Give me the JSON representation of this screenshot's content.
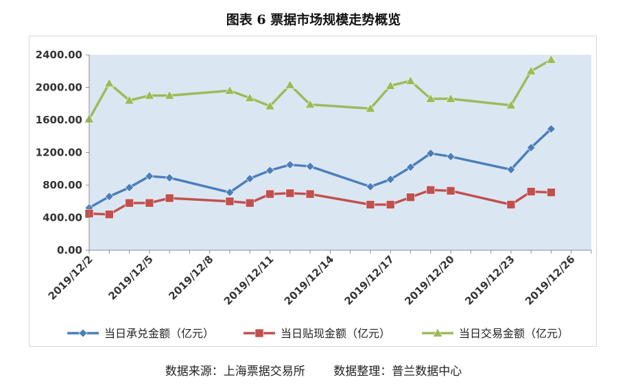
{
  "title": "图表 6  票据市场规模走势概览",
  "source": {
    "left": "数据来源：上海票据交易所",
    "right": "数据整理：普兰数据中心"
  },
  "chart_data": {
    "type": "line",
    "title": "",
    "xlabel": "",
    "ylabel": "",
    "ylim": [
      0,
      2400
    ],
    "yticks": [
      "0.00",
      "400.00",
      "800.00",
      "1200.00",
      "1600.00",
      "2000.00",
      "2400.00"
    ],
    "xrange": [
      "2019-12-02",
      "2019-12-27"
    ],
    "xtick_labels": [
      "2019/12/2",
      "2019/12/5",
      "2019/12/8",
      "2019/12/11",
      "2019/12/14",
      "2019/12/17",
      "2019/12/20",
      "2019/12/23",
      "2019/12/26"
    ],
    "xtick_dates": [
      "2019-12-02",
      "2019-12-05",
      "2019-12-08",
      "2019-12-11",
      "2019-12-14",
      "2019-12-17",
      "2019-12-20",
      "2019-12-23",
      "2019-12-26"
    ],
    "x": [
      "2019-12-02",
      "2019-12-03",
      "2019-12-04",
      "2019-12-05",
      "2019-12-06",
      "2019-12-09",
      "2019-12-10",
      "2019-12-11",
      "2019-12-12",
      "2019-12-13",
      "2019-12-16",
      "2019-12-17",
      "2019-12-18",
      "2019-12-19",
      "2019-12-20",
      "2019-12-23",
      "2019-12-24",
      "2019-12-25"
    ],
    "grid": false,
    "legend_position": "bottom",
    "plot_background": "#dbe6f3",
    "series": [
      {
        "name": "当日承兑金额（亿元）",
        "color": "#4a7ebb",
        "marker": "diamond",
        "values": [
          520,
          660,
          770,
          910,
          890,
          710,
          880,
          980,
          1050,
          1030,
          780,
          870,
          1020,
          1190,
          1150,
          990,
          1260,
          1490
        ]
      },
      {
        "name": "当日贴现金额（亿元）",
        "color": "#c0504d",
        "marker": "square",
        "values": [
          450,
          440,
          580,
          580,
          640,
          600,
          580,
          690,
          700,
          690,
          560,
          560,
          650,
          740,
          730,
          560,
          720,
          710
        ]
      },
      {
        "name": "当日交易金额（亿元）",
        "color": "#9bbb59",
        "marker": "triangle",
        "values": [
          1610,
          2050,
          1840,
          1900,
          1900,
          1960,
          1870,
          1770,
          2030,
          1790,
          1740,
          2020,
          2080,
          1860,
          1860,
          1780,
          2200,
          2340
        ]
      }
    ]
  }
}
